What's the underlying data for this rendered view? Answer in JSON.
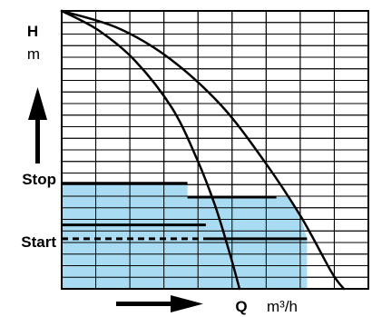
{
  "chart_data": {
    "type": "line",
    "title": "",
    "xlabel": "Q",
    "xunit": "m³/h",
    "ylabel": "H",
    "yunit": "m",
    "grid": true,
    "axis_ticks_numbered": false,
    "levels": {
      "stop_label": "Stop",
      "start_label": "Start"
    },
    "region_color": "#a9dcf2",
    "curve_color": "#000000",
    "series": [
      {
        "values": [
          [
            0.0,
            1.0
          ],
          [
            0.12,
            0.93
          ],
          [
            0.24,
            0.82
          ],
          [
            0.36,
            0.65
          ],
          [
            0.44,
            0.47
          ],
          [
            0.5,
            0.3
          ],
          [
            0.55,
            0.12
          ],
          [
            0.58,
            0.0
          ]
        ]
      },
      {
        "values": [
          [
            0.0,
            1.0
          ],
          [
            0.18,
            0.94
          ],
          [
            0.35,
            0.83
          ],
          [
            0.52,
            0.66
          ],
          [
            0.66,
            0.46
          ],
          [
            0.78,
            0.26
          ],
          [
            0.88,
            0.06
          ],
          [
            0.92,
            0.0
          ]
        ]
      }
    ],
    "operating_lines": [
      {
        "level": "stop",
        "y": 0.38,
        "x_start": 0.0,
        "x_end": 0.41,
        "style": "solid"
      },
      {
        "level": "stop",
        "y": 0.33,
        "x_start": 0.41,
        "x_end": 0.7,
        "style": "solid"
      },
      {
        "level": "start",
        "y": 0.23,
        "x_start": 0.0,
        "x_end": 0.47,
        "style": "solid"
      },
      {
        "level": "start",
        "y": 0.18,
        "x_start": 0.0,
        "x_end": 0.47,
        "style": "dashed"
      },
      {
        "level": "start",
        "y": 0.18,
        "x_start": 0.47,
        "x_end": 0.8,
        "style": "solid"
      }
    ]
  }
}
